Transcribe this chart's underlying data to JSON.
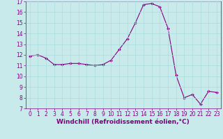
{
  "x": [
    0,
    1,
    2,
    3,
    4,
    5,
    6,
    7,
    8,
    9,
    10,
    11,
    12,
    13,
    14,
    15,
    16,
    17,
    18,
    19,
    20,
    21,
    22,
    23
  ],
  "y": [
    11.9,
    12.0,
    11.7,
    11.1,
    11.1,
    11.2,
    11.2,
    11.1,
    11.0,
    11.1,
    11.5,
    12.5,
    13.5,
    15.0,
    16.7,
    16.8,
    16.5,
    14.5,
    10.1,
    8.0,
    8.3,
    7.4,
    8.6,
    8.5
  ],
  "line_color": "#800080",
  "marker": "D",
  "marker_size": 2.0,
  "linewidth": 0.8,
  "xlabel": "Windchill (Refroidissement éolien,°C)",
  "xlabel_fontsize": 6.5,
  "xlabel_color": "#800080",
  "xlim": [
    -0.5,
    23.5
  ],
  "ylim": [
    7,
    17
  ],
  "yticks": [
    7,
    8,
    9,
    10,
    11,
    12,
    13,
    14,
    15,
    16,
    17
  ],
  "xticks": [
    0,
    1,
    2,
    3,
    4,
    5,
    6,
    7,
    8,
    9,
    10,
    11,
    12,
    13,
    14,
    15,
    16,
    17,
    18,
    19,
    20,
    21,
    22,
    23
  ],
  "grid_color": "#aadddd",
  "bg_color": "#c8eaea",
  "tick_fontsize": 5.5,
  "tick_label_color": "#800080"
}
